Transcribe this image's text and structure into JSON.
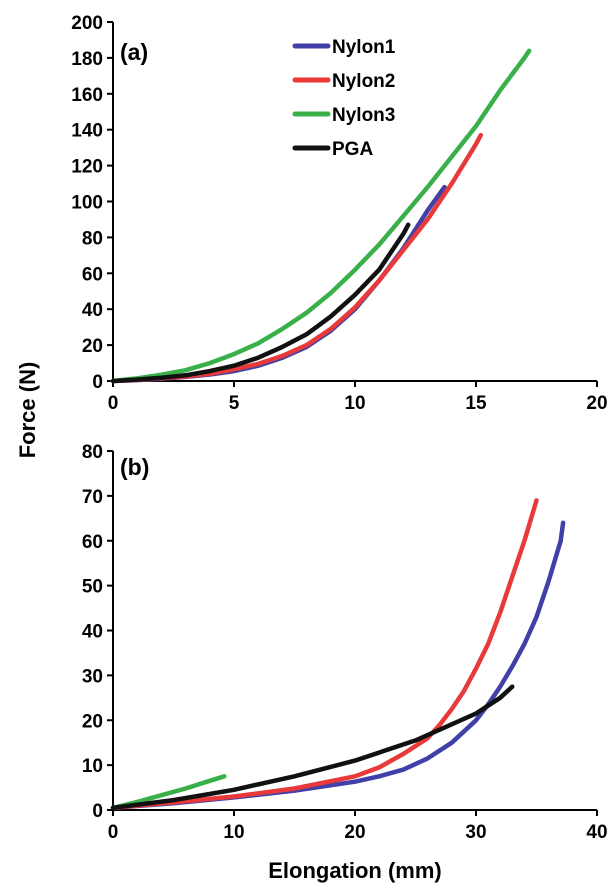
{
  "shared": {
    "ylabel": "Force (N)",
    "xlabel": "Elongation (mm)"
  },
  "chart_data": [
    {
      "type": "line",
      "panel_label": "(a)",
      "xlim": [
        0,
        20
      ],
      "ylim": [
        0,
        200
      ],
      "xticks": [
        0,
        5,
        10,
        15,
        20
      ],
      "yticks": [
        0,
        20,
        40,
        60,
        80,
        100,
        120,
        140,
        160,
        180,
        200
      ],
      "grid": false,
      "legend": "top-center",
      "series": [
        {
          "name": "Nylon1",
          "color": "#4040a8",
          "x": [
            0,
            1,
            2,
            3,
            4,
            5,
            6,
            7,
            8,
            9,
            10,
            11,
            12,
            13,
            13.7
          ],
          "y": [
            0,
            0.5,
            1.2,
            2.3,
            3.6,
            5.5,
            8.5,
            13,
            19,
            28,
            40,
            56,
            74,
            95,
            108
          ]
        },
        {
          "name": "Nylon2",
          "color": "#e83a3a",
          "x": [
            0,
            1,
            2,
            3,
            4,
            5,
            6,
            7,
            8,
            9,
            10,
            11,
            12,
            13,
            14,
            15,
            15.2
          ],
          "y": [
            0,
            0.6,
            1.5,
            2.5,
            4,
            6.5,
            9.5,
            14,
            20,
            29,
            41,
            56,
            73,
            90,
            110,
            132,
            137
          ]
        },
        {
          "name": "Nylon3",
          "color": "#3ab04a",
          "x": [
            0,
            1,
            2,
            3,
            4,
            5,
            6,
            7,
            8,
            9,
            10,
            11,
            12,
            13,
            14,
            15,
            16,
            17,
            17.2
          ],
          "y": [
            0,
            1.5,
            3.5,
            6,
            10,
            15,
            21,
            29,
            38,
            49,
            62,
            76,
            92,
            108,
            125,
            142,
            162,
            180,
            184
          ]
        },
        {
          "name": "PGA",
          "color": "#111111",
          "x": [
            0,
            1,
            2,
            3,
            4,
            5,
            6,
            7,
            8,
            9,
            10,
            11,
            12,
            12.2
          ],
          "y": [
            0,
            0.8,
            1.8,
            3.2,
            5.5,
            8.5,
            13,
            19,
            26,
            36,
            48,
            62,
            82,
            87
          ]
        }
      ]
    },
    {
      "type": "line",
      "panel_label": "(b)",
      "xlim": [
        0,
        40
      ],
      "ylim": [
        0,
        80
      ],
      "xticks": [
        0,
        10,
        20,
        30,
        40
      ],
      "yticks": [
        0,
        10,
        20,
        30,
        40,
        50,
        60,
        70,
        80
      ],
      "grid": false,
      "series": [
        {
          "name": "Nylon1",
          "color": "#4040a8",
          "x": [
            0,
            5,
            10,
            15,
            20,
            22,
            24,
            26,
            28,
            30,
            31,
            32,
            33,
            34,
            35,
            36,
            37,
            37.2
          ],
          "y": [
            0.5,
            1.5,
            2.8,
            4.3,
            6.3,
            7.5,
            9,
            11.5,
            15,
            20,
            23.5,
            27.5,
            32,
            37,
            43,
            51,
            60,
            64
          ]
        },
        {
          "name": "Nylon2",
          "color": "#e83a3a",
          "x": [
            0,
            5,
            10,
            15,
            20,
            22,
            24,
            26,
            27,
            28,
            29,
            30,
            31,
            32,
            33,
            34,
            35
          ],
          "y": [
            0.5,
            1.7,
            3,
            4.8,
            7.5,
            9.5,
            12.5,
            16,
            19,
            22.5,
            26.5,
            31.5,
            37,
            44,
            52,
            60,
            69
          ]
        },
        {
          "name": "Nylon3",
          "color": "#3ab04a",
          "x": [
            0,
            2,
            4,
            6,
            8,
            9.2
          ],
          "y": [
            0.5,
            1.8,
            3.3,
            4.8,
            6.5,
            7.5
          ]
        },
        {
          "name": "PGA",
          "color": "#111111",
          "x": [
            0,
            5,
            10,
            15,
            20,
            25,
            30,
            32,
            33
          ],
          "y": [
            0.5,
            2.2,
            4.5,
            7.5,
            11,
            15.5,
            21.5,
            25,
            27.5
          ]
        }
      ]
    }
  ]
}
